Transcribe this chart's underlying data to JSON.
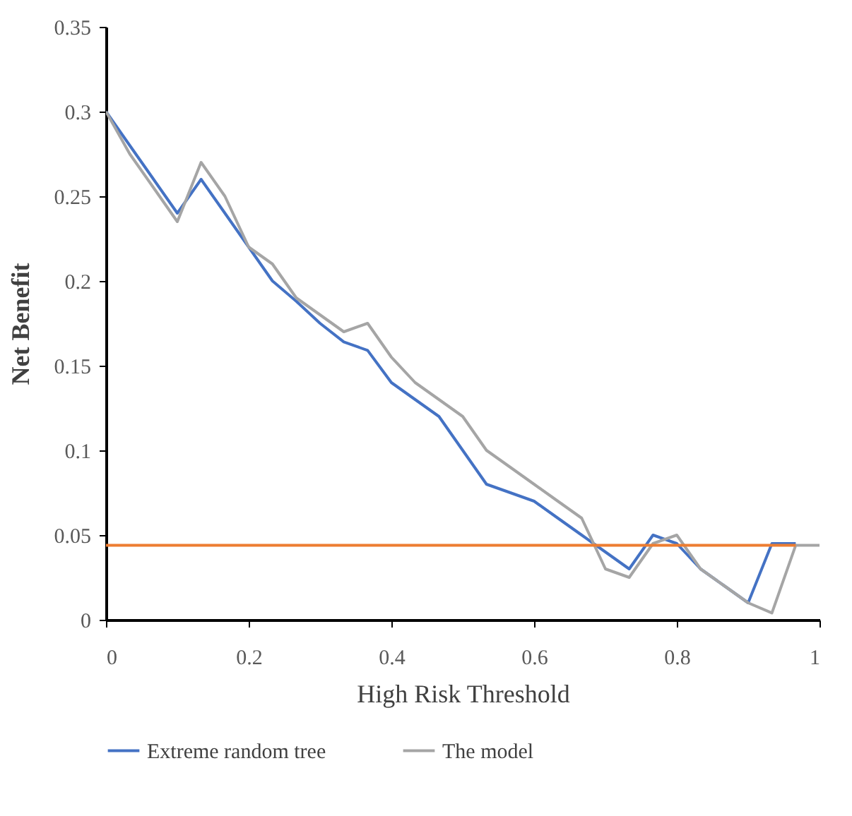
{
  "chart_data": {
    "type": "line",
    "xlabel": "High Risk Threshold",
    "ylabel": "Net Benefit",
    "xlim": [
      0,
      1
    ],
    "xticks": [
      0,
      0.2,
      0.4,
      0.6,
      0.8,
      1
    ],
    "ylim": [
      0,
      0.35
    ],
    "yticks": [
      0,
      0.05,
      0.1,
      0.15,
      0.2,
      0.25,
      0.3,
      0.35
    ],
    "grid": false,
    "legend": "bottom",
    "marker": "none",
    "line_style": "solid",
    "series": [
      {
        "name": "Extreme random tree",
        "color": "#4472c4",
        "x": [
          0,
          0.0333,
          0.0667,
          0.1,
          0.1333,
          0.1667,
          0.2,
          0.2333,
          0.2667,
          0.3,
          0.3333,
          0.3667,
          0.4,
          0.4333,
          0.4667,
          0.5,
          0.5333,
          0.5667,
          0.6,
          0.6333,
          0.6667,
          0.7,
          0.7333,
          0.7667,
          0.8,
          0.8333,
          0.8667,
          0.9,
          0.9333,
          0.9667
        ],
        "values": [
          0.3,
          0.28,
          0.26,
          0.24,
          0.26,
          0.24,
          0.22,
          0.2,
          0.188,
          0.175,
          0.164,
          0.159,
          0.14,
          0.13,
          0.12,
          0.1,
          0.08,
          0.075,
          0.07,
          0.06,
          0.05,
          0.04,
          0.03,
          0.05,
          0.045,
          0.03,
          0.02,
          0.01,
          0.045,
          0.045
        ]
      },
      {
        "name": "The model",
        "color": "#a5a5a5",
        "x": [
          0,
          0.0333,
          0.0667,
          0.1,
          0.1333,
          0.1667,
          0.2,
          0.2333,
          0.2667,
          0.3,
          0.3333,
          0.3667,
          0.4,
          0.4333,
          0.4667,
          0.5,
          0.5333,
          0.5667,
          0.6,
          0.6333,
          0.6667,
          0.7,
          0.7333,
          0.7667,
          0.8,
          0.8333,
          0.8667,
          0.9,
          0.9333,
          0.9667,
          1
        ],
        "values": [
          0.3,
          0.275,
          0.255,
          0.235,
          0.27,
          0.25,
          0.22,
          0.21,
          0.19,
          0.18,
          0.17,
          0.175,
          0.155,
          0.14,
          0.13,
          0.12,
          0.1,
          0.09,
          0.08,
          0.07,
          0.06,
          0.03,
          0.025,
          0.045,
          0.05,
          0.03,
          0.02,
          0.01,
          0.004,
          0.044,
          0.044
        ]
      },
      {
        "color": "#ed7d31",
        "x": [
          0,
          0.9667
        ],
        "values": [
          0.044,
          0.044
        ]
      }
    ]
  }
}
